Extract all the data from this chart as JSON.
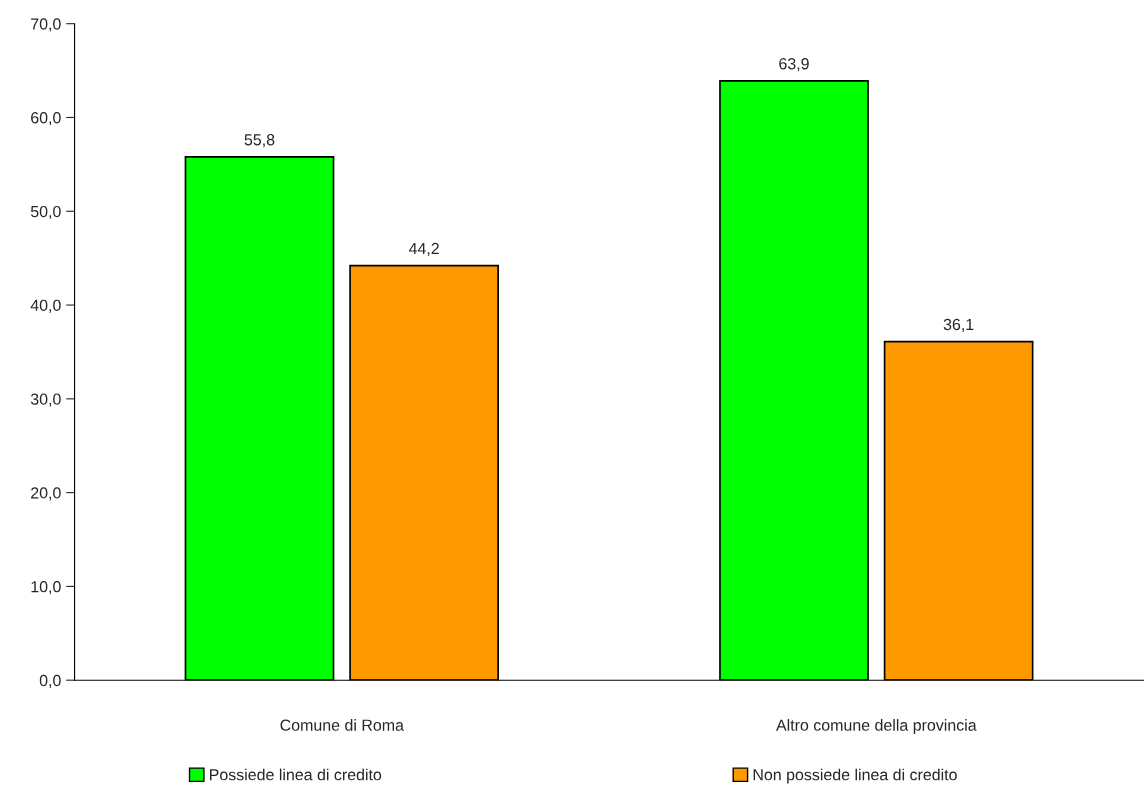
{
  "chart_data": {
    "type": "bar",
    "categories": [
      "Comune di Roma",
      "Altro comune della provincia"
    ],
    "series": [
      {
        "name": "Possiede linea di credito",
        "color": "#00ff00",
        "values": [
          55.8,
          63.9
        ],
        "value_labels": [
          "55,8",
          "63,9"
        ]
      },
      {
        "name": "Non possiede linea di credito",
        "color": "#ff9900",
        "values": [
          44.2,
          36.1
        ],
        "value_labels": [
          "44,2",
          "36,1"
        ]
      }
    ],
    "ylim": [
      0,
      70
    ],
    "yticks": [
      {
        "value": 0,
        "label": "0,0"
      },
      {
        "value": 10,
        "label": "10,0"
      },
      {
        "value": 20,
        "label": "20,0"
      },
      {
        "value": 30,
        "label": "30,0"
      },
      {
        "value": 40,
        "label": "40,0"
      },
      {
        "value": 50,
        "label": "50,0"
      },
      {
        "value": 60,
        "label": "60,0"
      },
      {
        "value": 70,
        "label": "70,0"
      }
    ],
    "grid": false,
    "legend": "bottom"
  }
}
